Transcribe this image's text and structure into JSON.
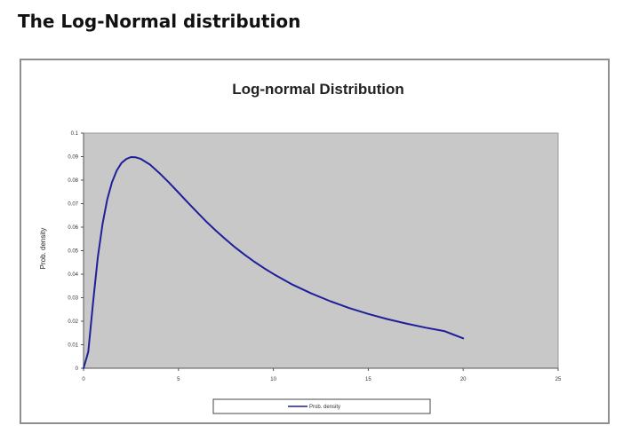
{
  "page": {
    "heading": "The Log-Normal distribution"
  },
  "chart_data": {
    "type": "line",
    "title": "Log-normal Distribution",
    "xlabel": "",
    "ylabel": "Prob. density",
    "xlim": [
      0,
      25
    ],
    "ylim": [
      0,
      0.1
    ],
    "x_ticks": [
      "0",
      "5",
      "10",
      "15",
      "20",
      "25"
    ],
    "y_ticks": [
      "0",
      "0.01",
      "0.02",
      "0.03",
      "0.04",
      "0.05",
      "0.06",
      "0.07",
      "0.08",
      "0.09",
      "0.1"
    ],
    "grid": false,
    "plot_background": "#c8c8c8",
    "legend": {
      "position": "bottom",
      "entries": [
        "Prob. density"
      ]
    },
    "series": [
      {
        "name": "Prob. density",
        "color": "#1f1f9a",
        "x": [
          0,
          0.25,
          0.5,
          0.75,
          1,
          1.25,
          1.5,
          1.75,
          2,
          2.25,
          2.5,
          2.75,
          3,
          3.5,
          4,
          4.5,
          5,
          5.5,
          6,
          6.5,
          7,
          7.5,
          8,
          8.5,
          9,
          9.5,
          10,
          11,
          12,
          13,
          14,
          15,
          16,
          17,
          18,
          19,
          20
        ],
        "y": [
          0,
          0.0069,
          0.0279,
          0.047,
          0.0614,
          0.0718,
          0.0791,
          0.0841,
          0.0873,
          0.089,
          0.0898,
          0.0897,
          0.0891,
          0.0866,
          0.083,
          0.079,
          0.0747,
          0.0704,
          0.0662,
          0.0621,
          0.0583,
          0.0547,
          0.0513,
          0.0482,
          0.0453,
          0.0426,
          0.0401,
          0.0356,
          0.0318,
          0.0285,
          0.0256,
          0.0231,
          0.0209,
          0.019,
          0.0173,
          0.0158,
          0.0127
        ]
      }
    ]
  }
}
